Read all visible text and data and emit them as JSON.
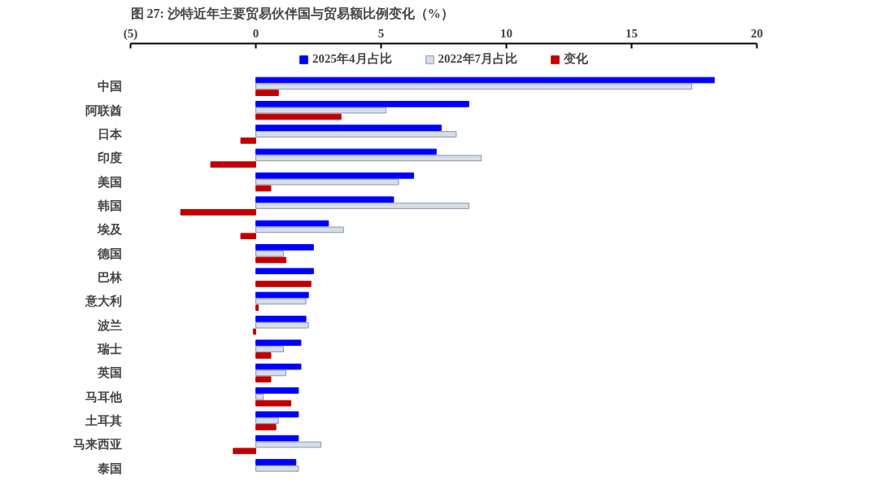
{
  "chart_data": {
    "type": "bar",
    "orientation": "horizontal",
    "title": "图 27:  沙特近年主要贸易伙伴国与贸易额比例变化（%）",
    "categories": [
      "中国",
      "阿联酋",
      "日本",
      "印度",
      "美国",
      "韩国",
      "埃及",
      "德国",
      "巴林",
      "意大利",
      "波兰",
      "瑞士",
      "英国",
      "马耳他",
      "土耳其",
      "马来西亚",
      "泰国"
    ],
    "series": [
      {
        "name": "2025年4月占比",
        "color": "#0000ff",
        "values": [
          18.3,
          8.5,
          7.4,
          7.2,
          6.3,
          5.5,
          2.9,
          2.3,
          2.3,
          2.1,
          2.0,
          1.8,
          1.8,
          1.7,
          1.7,
          1.7,
          1.6
        ]
      },
      {
        "name": "2022年7月占比",
        "color": "#d9dde6",
        "values": [
          17.4,
          5.2,
          8.0,
          9.0,
          5.7,
          8.5,
          3.5,
          1.1,
          null,
          2.0,
          2.1,
          1.1,
          1.2,
          0.3,
          0.9,
          2.6,
          1.7
        ]
      },
      {
        "name": "变化",
        "color": "#c00000",
        "values": [
          0.9,
          3.4,
          -0.6,
          -1.8,
          0.6,
          -3.0,
          -0.6,
          1.2,
          2.2,
          0.1,
          -0.1,
          0.6,
          0.6,
          1.4,
          0.8,
          -0.9,
          null
        ]
      }
    ],
    "xlim": [
      -5,
      20
    ],
    "xticks": [
      {
        "value": -5,
        "label": "(5)"
      },
      0,
      5,
      10,
      15,
      20
    ],
    "legend": "top",
    "grid": false
  }
}
